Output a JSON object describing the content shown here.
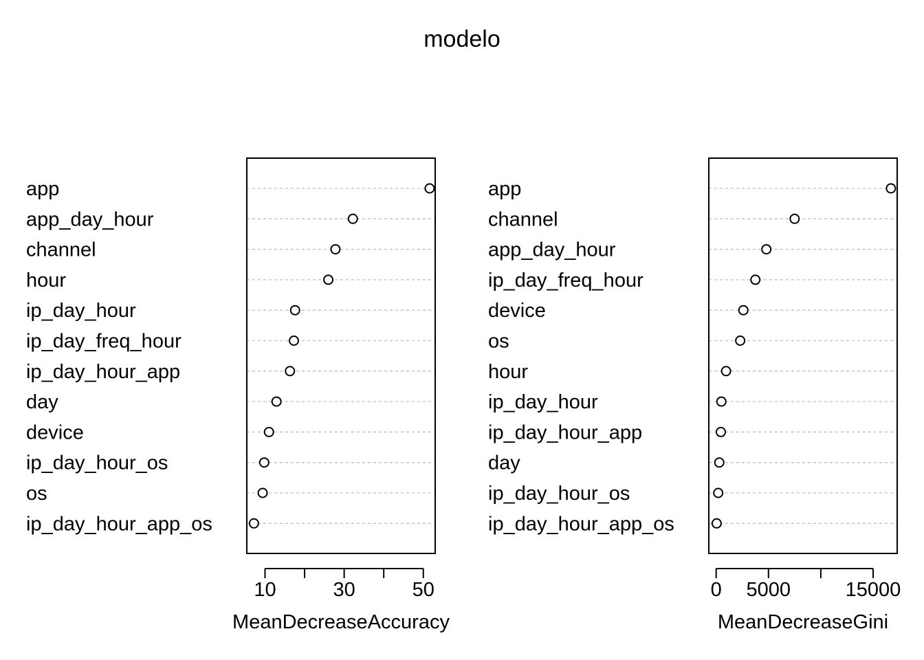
{
  "title": "modelo",
  "chart_data": [
    {
      "type": "scatter",
      "xlabel": "MeanDecreaseAccuracy",
      "xlim": [
        5.4,
        53.0
      ],
      "xticks": [
        10,
        20,
        30,
        40,
        50
      ],
      "xtick_labels": [
        "10",
        "",
        "30",
        "",
        "50"
      ],
      "categories": [
        "app",
        "app_day_hour",
        "channel",
        "hour",
        "ip_day_hour",
        "ip_day_freq_hour",
        "ip_day_hour_app",
        "day",
        "device",
        "ip_day_hour_os",
        "os",
        "ip_day_hour_app_os"
      ],
      "values": [
        51.6,
        32.2,
        27.8,
        26.0,
        17.6,
        17.3,
        16.3,
        12.9,
        11.0,
        9.8,
        9.4,
        7.2
      ],
      "grid": "dotted horizontal guides"
    },
    {
      "type": "scatter",
      "xlabel": "MeanDecreaseGini",
      "xlim": [
        -700,
        17300
      ],
      "xticks": [
        0,
        5000,
        10000,
        15000
      ],
      "xtick_labels": [
        "0",
        "5000",
        "",
        "15000"
      ],
      "categories": [
        "app",
        "channel",
        "app_day_hour",
        "ip_day_freq_hour",
        "device",
        "os",
        "hour",
        "ip_day_hour",
        "ip_day_hour_app",
        "day",
        "ip_day_hour_os",
        "ip_day_hour_app_os"
      ],
      "values": [
        16700,
        7500,
        4800,
        3750,
        2600,
        2300,
        950,
        500,
        450,
        300,
        200,
        50
      ],
      "grid": "dotted horizontal guides"
    }
  ]
}
